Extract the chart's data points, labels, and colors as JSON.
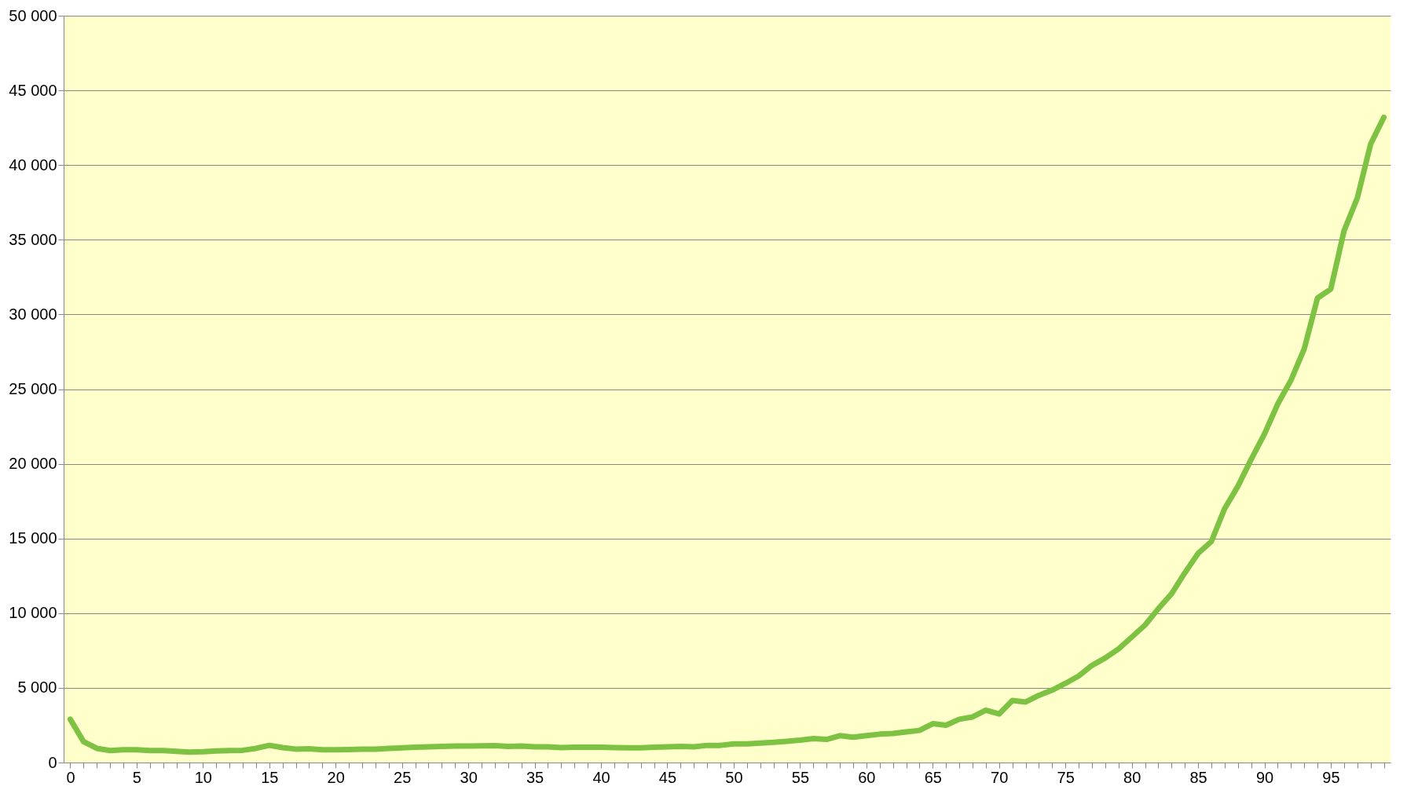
{
  "chart_data": {
    "type": "line",
    "x": [
      0,
      1,
      2,
      3,
      4,
      5,
      6,
      7,
      8,
      9,
      10,
      11,
      12,
      13,
      14,
      15,
      16,
      17,
      18,
      19,
      20,
      21,
      22,
      23,
      24,
      25,
      26,
      27,
      28,
      29,
      30,
      31,
      32,
      33,
      34,
      35,
      36,
      37,
      38,
      39,
      40,
      41,
      42,
      43,
      44,
      45,
      46,
      47,
      48,
      49,
      50,
      51,
      52,
      53,
      54,
      55,
      56,
      57,
      58,
      59,
      60,
      61,
      62,
      63,
      64,
      65,
      66,
      67,
      68,
      69,
      70,
      71,
      72,
      73,
      74,
      75,
      76,
      77,
      78,
      79,
      80,
      81,
      82,
      83,
      84,
      85,
      86,
      87,
      88,
      89,
      90,
      91,
      92,
      93,
      94,
      95,
      96,
      97,
      98,
      99
    ],
    "series": [
      {
        "color": "#7dc242",
        "values": [
          2900,
          1400,
          950,
          800,
          850,
          850,
          800,
          800,
          750,
          700,
          720,
          780,
          800,
          820,
          950,
          1150,
          1000,
          900,
          920,
          850,
          850,
          870,
          900,
          900,
          950,
          980,
          1020,
          1050,
          1080,
          1100,
          1100,
          1120,
          1130,
          1080,
          1100,
          1050,
          1050,
          1000,
          1020,
          1020,
          1020,
          1000,
          980,
          980,
          1020,
          1050,
          1080,
          1050,
          1150,
          1150,
          1250,
          1250,
          1300,
          1350,
          1420,
          1500,
          1600,
          1550,
          1800,
          1700,
          1800,
          1900,
          1950,
          2050,
          2150,
          2600,
          2500,
          2900,
          3050,
          3500,
          3250,
          4150,
          4050,
          4500,
          4850,
          5300,
          5800,
          6500,
          7000,
          7600,
          8400,
          9200,
          10300,
          11300,
          12700,
          14000,
          14800,
          17000,
          18500,
          20300,
          22000,
          24000,
          25600,
          27700,
          31100,
          31700,
          35600,
          37800,
          41400,
          43200
        ]
      }
    ],
    "xlim": [
      -0.5,
      99.5
    ],
    "xticks": [
      0,
      {
        "value": 1,
        "label": null
      },
      {
        "value": 2,
        "label": null
      },
      {
        "value": 3,
        "label": null
      },
      {
        "value": 4,
        "label": null
      },
      5,
      {
        "value": 6,
        "label": null
      },
      {
        "value": 7,
        "label": null
      },
      {
        "value": 8,
        "label": null
      },
      {
        "value": 9,
        "label": null
      },
      10,
      {
        "value": 11,
        "label": null
      },
      {
        "value": 12,
        "label": null
      },
      {
        "value": 13,
        "label": null
      },
      {
        "value": 14,
        "label": null
      },
      15,
      {
        "value": 16,
        "label": null
      },
      {
        "value": 17,
        "label": null
      },
      {
        "value": 18,
        "label": null
      },
      {
        "value": 19,
        "label": null
      },
      20,
      {
        "value": 21,
        "label": null
      },
      {
        "value": 22,
        "label": null
      },
      {
        "value": 23,
        "label": null
      },
      {
        "value": 24,
        "label": null
      },
      25,
      {
        "value": 26,
        "label": null
      },
      {
        "value": 27,
        "label": null
      },
      {
        "value": 28,
        "label": null
      },
      {
        "value": 29,
        "label": null
      },
      30,
      {
        "value": 31,
        "label": null
      },
      {
        "value": 32,
        "label": null
      },
      {
        "value": 33,
        "label": null
      },
      {
        "value": 34,
        "label": null
      },
      35,
      {
        "value": 36,
        "label": null
      },
      {
        "value": 37,
        "label": null
      },
      {
        "value": 38,
        "label": null
      },
      {
        "value": 39,
        "label": null
      },
      40,
      {
        "value": 41,
        "label": null
      },
      {
        "value": 42,
        "label": null
      },
      {
        "value": 43,
        "label": null
      },
      {
        "value": 44,
        "label": null
      },
      45,
      {
        "value": 46,
        "label": null
      },
      {
        "value": 47,
        "label": null
      },
      {
        "value": 48,
        "label": null
      },
      {
        "value": 49,
        "label": null
      },
      50,
      {
        "value": 51,
        "label": null
      },
      {
        "value": 52,
        "label": null
      },
      {
        "value": 53,
        "label": null
      },
      {
        "value": 54,
        "label": null
      },
      55,
      {
        "value": 56,
        "label": null
      },
      {
        "value": 57,
        "label": null
      },
      {
        "value": 58,
        "label": null
      },
      {
        "value": 59,
        "label": null
      },
      60,
      {
        "value": 61,
        "label": null
      },
      {
        "value": 62,
        "label": null
      },
      {
        "value": 63,
        "label": null
      },
      {
        "value": 64,
        "label": null
      },
      65,
      {
        "value": 66,
        "label": null
      },
      {
        "value": 67,
        "label": null
      },
      {
        "value": 68,
        "label": null
      },
      {
        "value": 69,
        "label": null
      },
      70,
      {
        "value": 71,
        "label": null
      },
      {
        "value": 72,
        "label": null
      },
      {
        "value": 73,
        "label": null
      },
      {
        "value": 74,
        "label": null
      },
      75,
      {
        "value": 76,
        "label": null
      },
      {
        "value": 77,
        "label": null
      },
      {
        "value": 78,
        "label": null
      },
      {
        "value": 79,
        "label": null
      },
      80,
      {
        "value": 81,
        "label": null
      },
      {
        "value": 82,
        "label": null
      },
      {
        "value": 83,
        "label": null
      },
      {
        "value": 84,
        "label": null
      },
      85,
      {
        "value": 86,
        "label": null
      },
      {
        "value": 87,
        "label": null
      },
      {
        "value": 88,
        "label": null
      },
      {
        "value": 89,
        "label": null
      },
      90,
      {
        "value": 91,
        "label": null
      },
      {
        "value": 92,
        "label": null
      },
      {
        "value": 93,
        "label": null
      },
      {
        "value": 94,
        "label": null
      },
      95,
      {
        "value": 96,
        "label": null
      },
      {
        "value": 97,
        "label": null
      },
      {
        "value": 98,
        "label": null
      },
      {
        "value": 99,
        "label": null
      }
    ],
    "ylim": [
      0,
      50000
    ],
    "yticks": [
      {
        "value": 0,
        "label": "0"
      },
      {
        "value": 5000,
        "label": "5 000"
      },
      {
        "value": 10000,
        "label": "10 000"
      },
      {
        "value": 15000,
        "label": "15 000"
      },
      {
        "value": 20000,
        "label": "20 000"
      },
      {
        "value": 25000,
        "label": "25 000"
      },
      {
        "value": 30000,
        "label": "30 000"
      },
      {
        "value": 35000,
        "label": "35 000"
      },
      {
        "value": 40000,
        "label": "40 000"
      },
      {
        "value": 45000,
        "label": "45 000"
      },
      {
        "value": 50000,
        "label": "50 000"
      }
    ],
    "grid": "y",
    "marker": "none",
    "line_style": "solid"
  }
}
